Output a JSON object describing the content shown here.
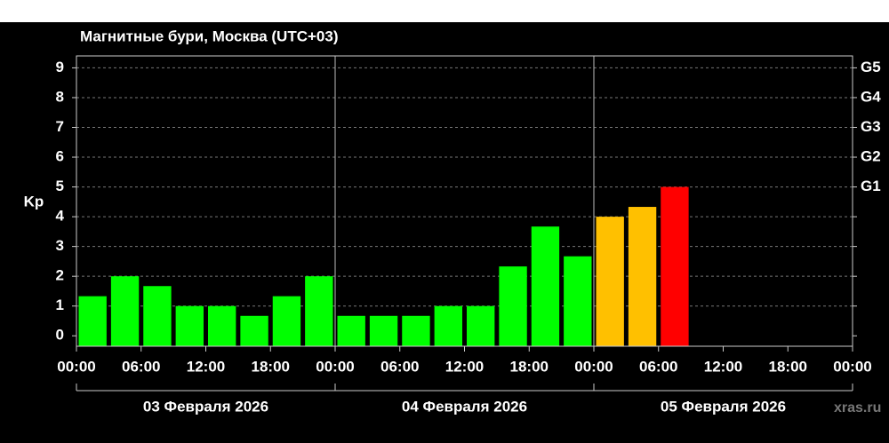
{
  "chart_data": {
    "type": "bar",
    "title": "Магнитные бури, Москва (UTC+03)",
    "ylabel": "Kp",
    "x": [
      0,
      3,
      6,
      9,
      12,
      15,
      18,
      21,
      24,
      27,
      30,
      33,
      36,
      39,
      42,
      45,
      48,
      51,
      54
    ],
    "bar_width": 3,
    "values": [
      1.33,
      2,
      1.67,
      1,
      1,
      0.67,
      1.33,
      2,
      0.67,
      0.67,
      0.67,
      1,
      1,
      2.33,
      3.67,
      2.67,
      4,
      4.33,
      5
    ],
    "colors": [
      "#00ff00",
      "#00ff00",
      "#00ff00",
      "#00ff00",
      "#00ff00",
      "#00ff00",
      "#00ff00",
      "#00ff00",
      "#00ff00",
      "#00ff00",
      "#00ff00",
      "#00ff00",
      "#00ff00",
      "#00ff00",
      "#00ff00",
      "#00ff00",
      "#ffc000",
      "#ffc000",
      "#ff0000"
    ],
    "xlim": [
      0,
      72
    ],
    "xticks": [
      {
        "value": 0,
        "label": "00:00"
      },
      {
        "value": 6,
        "label": "06:00"
      },
      {
        "value": 12,
        "label": "12:00"
      },
      {
        "value": 18,
        "label": "18:00"
      },
      {
        "value": 24,
        "label": "00:00"
      },
      {
        "value": 30,
        "label": "06:00"
      },
      {
        "value": 36,
        "label": "12:00"
      },
      {
        "value": 42,
        "label": "18:00"
      },
      {
        "value": 48,
        "label": "00:00"
      },
      {
        "value": 54,
        "label": "06:00"
      },
      {
        "value": 60,
        "label": "12:00"
      },
      {
        "value": 66,
        "label": "18:00"
      },
      {
        "value": 72,
        "label": "00:00"
      }
    ],
    "day_labels": [
      {
        "value": 0,
        "label": "03 Февраля 2026"
      },
      {
        "value": 24,
        "label": "04 Февраля 2026"
      },
      {
        "value": 48,
        "label": "05 Февраля 2026"
      }
    ],
    "ylim": [
      -0.35,
      9.4
    ],
    "yticks": [
      0,
      1,
      2,
      3,
      4,
      5,
      6,
      7,
      8,
      9
    ],
    "y2ticks": [
      {
        "value": 5,
        "label": "G1"
      },
      {
        "value": 6,
        "label": "G2"
      },
      {
        "value": 7,
        "label": "G3"
      },
      {
        "value": 8,
        "label": "G4"
      },
      {
        "value": 9,
        "label": "G5"
      }
    ],
    "grid": true,
    "watermark": "xras.ru"
  }
}
